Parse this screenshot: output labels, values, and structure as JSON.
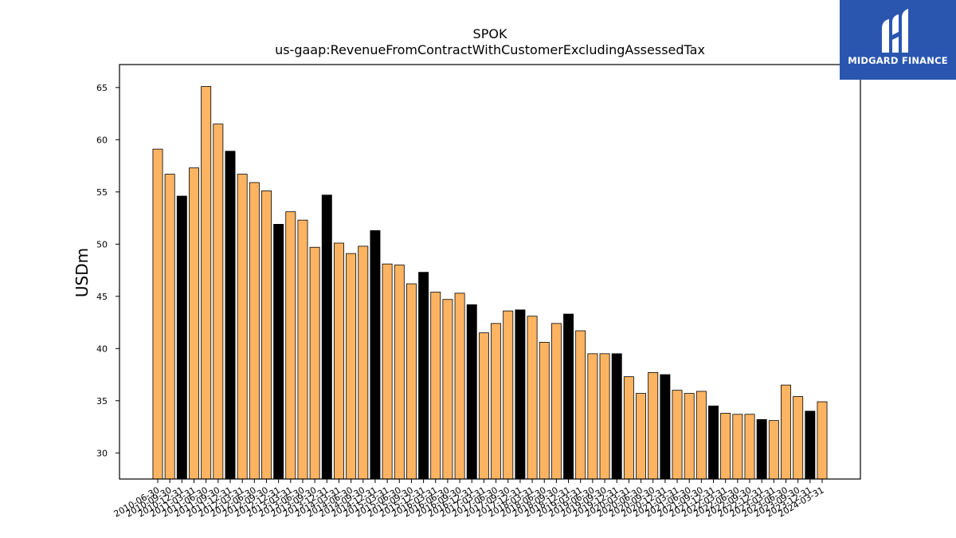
{
  "chart_data": {
    "type": "bar",
    "title": "SPOK",
    "subtitle": "us-gaap:RevenueFromContractWithCustomerExcludingAssessedTax",
    "xlabel": "",
    "ylabel": "USDm",
    "ylim": [
      27.5,
      67.2
    ],
    "yticks": [
      30,
      35,
      40,
      45,
      50,
      55,
      60,
      65
    ],
    "grid": false,
    "colors": {
      "quarter": "#FDB462",
      "fiscal_year_end": "#000000",
      "edge": "#000000"
    },
    "categories": [
      "2010-06-30",
      "2010-09-30",
      "2010-12-31",
      "2011-03-31",
      "2011-06-30",
      "2011-09-30",
      "2011-12-31",
      "2012-03-31",
      "2012-06-30",
      "2012-09-30",
      "2012-12-31",
      "2013-03-31",
      "2013-06-30",
      "2013-09-30",
      "2013-12-31",
      "2014-03-31",
      "2014-06-30",
      "2014-09-30",
      "2014-12-31",
      "2015-03-31",
      "2015-06-30",
      "2015-09-30",
      "2015-12-31",
      "2016-03-31",
      "2016-06-30",
      "2016-09-30",
      "2016-12-31",
      "2017-03-31",
      "2017-06-30",
      "2017-09-30",
      "2017-12-31",
      "2018-03-31",
      "2018-06-30",
      "2018-09-30",
      "2018-12-31",
      "2019-03-31",
      "2019-06-30",
      "2019-09-30",
      "2019-12-31",
      "2020-03-31",
      "2020-06-30",
      "2020-09-30",
      "2020-12-31",
      "2021-03-31",
      "2021-06-30",
      "2021-09-30",
      "2021-12-31",
      "2022-03-31",
      "2022-06-30",
      "2022-09-30",
      "2022-12-31",
      "2023-03-31",
      "2023-06-30",
      "2023-09-30",
      "2023-12-31",
      "2024-03-31"
    ],
    "values": [
      59.1,
      56.7,
      54.6,
      57.3,
      65.1,
      61.5,
      58.9,
      56.7,
      55.9,
      55.1,
      51.9,
      53.1,
      52.3,
      49.7,
      54.7,
      50.1,
      49.1,
      49.8,
      51.3,
      48.1,
      48.0,
      46.2,
      47.3,
      45.4,
      44.7,
      45.3,
      44.2,
      41.5,
      42.4,
      43.6,
      43.7,
      43.1,
      40.6,
      42.4,
      43.3,
      41.7,
      39.5,
      39.5,
      39.5,
      37.3,
      35.7,
      37.7,
      37.5,
      36.0,
      35.7,
      35.9,
      34.5,
      33.8,
      33.7,
      33.7,
      33.2,
      33.1,
      36.5,
      35.4,
      34.0,
      34.9
    ],
    "fiscal_year_end_flags": [
      0,
      0,
      1,
      0,
      0,
      0,
      1,
      0,
      0,
      0,
      1,
      0,
      0,
      0,
      1,
      0,
      0,
      0,
      1,
      0,
      0,
      0,
      1,
      0,
      0,
      0,
      1,
      0,
      0,
      0,
      1,
      0,
      0,
      0,
      1,
      0,
      0,
      0,
      1,
      0,
      0,
      0,
      1,
      0,
      0,
      0,
      1,
      0,
      0,
      0,
      1,
      0,
      0,
      0,
      1,
      0
    ]
  },
  "logo": {
    "text": "MIDGARD FINANCE",
    "background": "#2a56b0",
    "icon": "midgard-logo-icon"
  }
}
